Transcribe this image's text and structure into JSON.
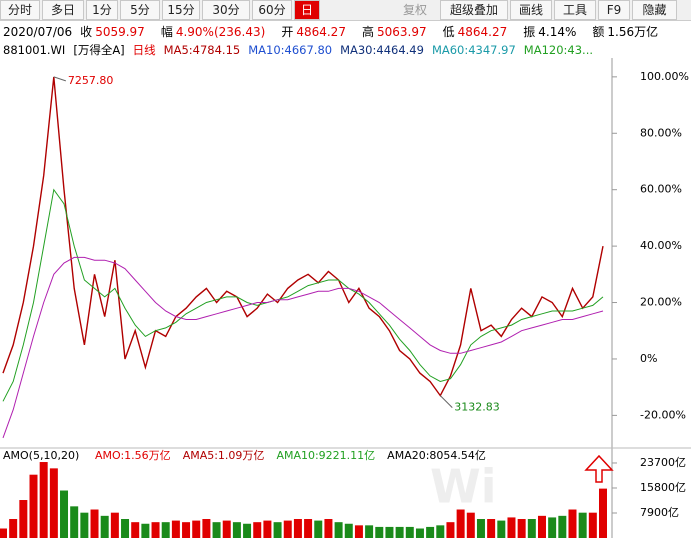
{
  "toolbar": {
    "buttons": [
      "分时",
      "多日",
      "1分",
      "5分",
      "15分",
      "30分",
      "60分",
      "日",
      "复权",
      "超级叠加",
      "画线",
      "工具",
      "F9",
      "隐藏"
    ]
  },
  "info_bar": {
    "date": "2020/07/06",
    "items": [
      {
        "label": "收",
        "value": "5059.97"
      },
      {
        "label": "幅",
        "value": "4.90%(236.43)"
      },
      {
        "label": "开",
        "value": "4864.27"
      },
      {
        "label": "高",
        "value": "5063.97"
      },
      {
        "label": "低",
        "value": "4864.27"
      },
      {
        "label": "振",
        "value": "4.14%"
      },
      {
        "label": "额",
        "value": "1.56万亿"
      }
    ]
  },
  "chart_data": [
    {
      "type": "line",
      "legend_texts": [
        {
          "text": "881001.WI",
          "color": "#000000"
        },
        {
          "text": "[万得全A]",
          "color": "#000000"
        },
        {
          "text": "日线",
          "color": "#e00000"
        },
        {
          "text": "MA5:4784.15",
          "color": "#b00000"
        },
        {
          "text": "MA10:4667.80",
          "color": "#1f4fd0"
        },
        {
          "text": "MA30:4464.49",
          "color": "#10307a"
        },
        {
          "text": "MA60:4347.97",
          "color": "#1a9aa8"
        },
        {
          "text": "MA120:43...",
          "color": "#22a022"
        }
      ],
      "series": [
        {
          "color": "#b00000",
          "values": [
            -5,
            5,
            20,
            40,
            65,
            100,
            60,
            25,
            5,
            30,
            15,
            35,
            0,
            10,
            -3,
            10,
            8,
            15,
            18,
            22,
            25,
            20,
            24,
            22,
            15,
            18,
            23,
            20,
            25,
            28,
            30,
            27,
            31,
            28,
            20,
            25,
            18,
            15,
            10,
            3,
            0,
            -5,
            -8,
            -13,
            -6,
            5,
            25,
            10,
            12,
            8,
            14,
            18,
            15,
            22,
            20,
            15,
            25,
            18,
            22,
            40
          ]
        },
        {
          "color": "#22a022",
          "values": [
            -15,
            -8,
            5,
            20,
            40,
            60,
            55,
            40,
            28,
            25,
            22,
            25,
            18,
            12,
            8,
            10,
            11,
            13,
            16,
            18,
            20,
            21,
            22,
            22,
            20,
            19,
            20,
            21,
            22,
            24,
            26,
            27,
            28,
            28,
            25,
            23,
            20,
            16,
            12,
            7,
            3,
            -2,
            -6,
            -8,
            -7,
            -2,
            5,
            8,
            10,
            11,
            12,
            14,
            15,
            16,
            17,
            17,
            17,
            18,
            19,
            22
          ]
        },
        {
          "color": "#b020b0",
          "values": [
            -28,
            -18,
            -5,
            8,
            20,
            30,
            34,
            36,
            36,
            35,
            35,
            34,
            32,
            28,
            24,
            20,
            17,
            15,
            14,
            14,
            15,
            16,
            17,
            18,
            19,
            20,
            20,
            21,
            21,
            22,
            23,
            24,
            24,
            25,
            25,
            24,
            22,
            20,
            17,
            14,
            11,
            8,
            5,
            3,
            2,
            2,
            3,
            4,
            5,
            6,
            8,
            10,
            11,
            12,
            13,
            14,
            14,
            15,
            16,
            17
          ]
        }
      ],
      "ylim": [
        -30.5,
        112
      ],
      "yticks": [
        {
          "value": 100,
          "label": "100.00%"
        },
        {
          "value": 80,
          "label": "80.00%"
        },
        {
          "value": 60,
          "label": "60.00%"
        },
        {
          "value": 40,
          "label": "40.00%"
        },
        {
          "value": 20,
          "label": "20.00%"
        },
        {
          "value": 0,
          "label": "0%"
        },
        {
          "value": -20,
          "label": "-20.00%"
        }
      ],
      "max_label": "7257.80",
      "min_label": "3132.83"
    },
    {
      "type": "bar",
      "title": "AMO(5,10,20)",
      "legend_texts": [
        {
          "text": "AMO:1.56万亿",
          "color": "#e00000"
        },
        {
          "text": "AMA5:1.09万亿",
          "color": "#b00000"
        },
        {
          "text": "AMA10:9221.11亿",
          "color": "#22a022"
        },
        {
          "text": "AMA20:8054.54亿",
          "color": "#000000"
        }
      ],
      "values": [
        3000,
        6000,
        12000,
        20000,
        24000,
        22000,
        15000,
        10000,
        8000,
        9000,
        7000,
        8000,
        6000,
        5000,
        4500,
        5000,
        5000,
        5500,
        5000,
        5500,
        6000,
        5000,
        5500,
        5000,
        4500,
        5000,
        5500,
        5000,
        5500,
        6000,
        6000,
        5500,
        6000,
        5000,
        4500,
        4000,
        4000,
        3500,
        3500,
        3500,
        3500,
        3000,
        3500,
        4000,
        5000,
        9000,
        8000,
        6000,
        6000,
        5500,
        6500,
        6000,
        6000,
        7000,
        6500,
        7000,
        9000,
        8000,
        8000,
        15600
      ],
      "up_color": "#e00000",
      "down_color": "#1a8a1a",
      "ylim": [
        0,
        27800
      ],
      "yticks": [
        {
          "value": 23700,
          "label": "23700亿"
        },
        {
          "value": 15800,
          "label": "15800亿"
        },
        {
          "value": 7900,
          "label": "7900亿"
        }
      ]
    }
  ]
}
